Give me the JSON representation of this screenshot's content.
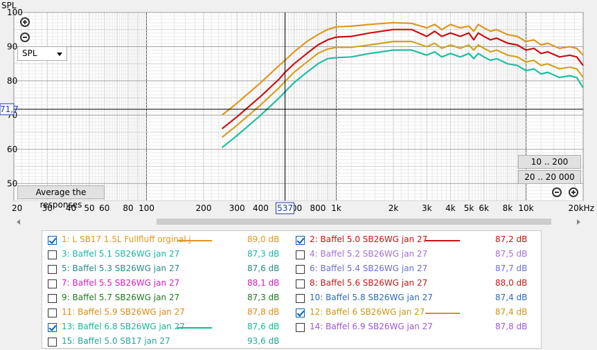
{
  "chart_data": {
    "type": "line",
    "title": "",
    "xlabel": "",
    "ylabel": "SPL",
    "xscale": "log",
    "xlim": [
      20,
      20000
    ],
    "ylim": [
      45,
      100
    ],
    "yticks": [
      100,
      90,
      80,
      70,
      60,
      50
    ],
    "xticks": [
      {
        "v": 20,
        "t": "20"
      },
      {
        "v": 30,
        "t": "30"
      },
      {
        "v": 40,
        "t": "40"
      },
      {
        "v": 50,
        "t": "50"
      },
      {
        "v": 60,
        "t": "60"
      },
      {
        "v": 80,
        "t": "80"
      },
      {
        "v": 100,
        "t": "100"
      },
      {
        "v": 200,
        "t": "200"
      },
      {
        "v": 300,
        "t": "300"
      },
      {
        "v": 400,
        "t": "400"
      },
      {
        "v": 600,
        "t": "600"
      },
      {
        "v": 800,
        "t": "800"
      },
      {
        "v": 1000,
        "t": "1k"
      },
      {
        "v": 2000,
        "t": "2k"
      },
      {
        "v": 3000,
        "t": "3k"
      },
      {
        "v": 4000,
        "t": "4k"
      },
      {
        "v": 5000,
        "t": "5k"
      },
      {
        "v": 6000,
        "t": "6k"
      },
      {
        "v": 8000,
        "t": "8k"
      },
      {
        "v": 10000,
        "t": "10k"
      },
      {
        "v": 20000,
        "t": "20kHz"
      }
    ],
    "cursor": {
      "x": 537,
      "y": 71.7,
      "x_label": "537",
      "y_label": "71,7"
    },
    "series": [
      {
        "name": "1: L SB17 1.5L Fullfluff orginal j",
        "color": "#e0951e",
        "points": [
          [
            250,
            70
          ],
          [
            300,
            73.5
          ],
          [
            400,
            79.5
          ],
          [
            500,
            84.5
          ],
          [
            537,
            86
          ],
          [
            600,
            88.5
          ],
          [
            700,
            91.5
          ],
          [
            800,
            93.5
          ],
          [
            900,
            95
          ],
          [
            1000,
            95.8
          ],
          [
            1200,
            96
          ],
          [
            1500,
            96.5
          ],
          [
            2000,
            97
          ],
          [
            2500,
            96.8
          ],
          [
            3000,
            95.5
          ],
          [
            3300,
            96.5
          ],
          [
            3600,
            95
          ],
          [
            4000,
            96.5
          ],
          [
            4500,
            95.5
          ],
          [
            5000,
            96
          ],
          [
            5300,
            94.5
          ],
          [
            5600,
            96.5
          ],
          [
            6000,
            95.5
          ],
          [
            6500,
            94.5
          ],
          [
            7000,
            95
          ],
          [
            8000,
            93.5
          ],
          [
            9000,
            93
          ],
          [
            10000,
            91.5
          ],
          [
            11000,
            92
          ],
          [
            12000,
            90.5
          ],
          [
            13000,
            91
          ],
          [
            15000,
            89.5
          ],
          [
            17000,
            90
          ],
          [
            18500,
            89.5
          ],
          [
            20000,
            87.5
          ]
        ]
      },
      {
        "name": "2: Baffel 5.0 SB26WG jan 27",
        "color": "#cc1010",
        "points": [
          [
            250,
            66
          ],
          [
            300,
            69.5
          ],
          [
            400,
            75.5
          ],
          [
            500,
            80.5
          ],
          [
            537,
            82.5
          ],
          [
            600,
            85
          ],
          [
            700,
            88
          ],
          [
            800,
            90.5
          ],
          [
            900,
            92
          ],
          [
            1000,
            92.8
          ],
          [
            1200,
            93
          ],
          [
            1500,
            94
          ],
          [
            2000,
            95
          ],
          [
            2500,
            95
          ],
          [
            3000,
            93
          ],
          [
            3300,
            94.5
          ],
          [
            3600,
            93
          ],
          [
            4000,
            94
          ],
          [
            4500,
            93
          ],
          [
            5000,
            94
          ],
          [
            5300,
            92
          ],
          [
            5600,
            94
          ],
          [
            6000,
            93
          ],
          [
            6500,
            92
          ],
          [
            7000,
            92.5
          ],
          [
            8000,
            91
          ],
          [
            9000,
            90.5
          ],
          [
            10000,
            89
          ],
          [
            11000,
            89.5
          ],
          [
            12000,
            88
          ],
          [
            13000,
            88.5
          ],
          [
            15000,
            87
          ],
          [
            17000,
            87.5
          ],
          [
            18500,
            87
          ],
          [
            20000,
            84.5
          ]
        ]
      },
      {
        "name": "12: Baffel 6 SB26WG jan 27",
        "color": "#d4a020",
        "points": [
          [
            250,
            63.5
          ],
          [
            300,
            67
          ],
          [
            400,
            73
          ],
          [
            500,
            78
          ],
          [
            537,
            79.8
          ],
          [
            600,
            82.5
          ],
          [
            700,
            85.5
          ],
          [
            800,
            88
          ],
          [
            900,
            89.3
          ],
          [
            1000,
            89.8
          ],
          [
            1200,
            89.8
          ],
          [
            1500,
            90.5
          ],
          [
            2000,
            91.5
          ],
          [
            2500,
            91.5
          ],
          [
            3000,
            90
          ],
          [
            3300,
            91
          ],
          [
            3600,
            89.5
          ],
          [
            4000,
            90.5
          ],
          [
            4500,
            89.5
          ],
          [
            5000,
            90.5
          ],
          [
            5300,
            89
          ],
          [
            5600,
            90.5
          ],
          [
            6000,
            89.5
          ],
          [
            6500,
            88.5
          ],
          [
            7000,
            89
          ],
          [
            8000,
            87.5
          ],
          [
            9000,
            87
          ],
          [
            10000,
            85.5
          ],
          [
            11000,
            86
          ],
          [
            12000,
            84.5
          ],
          [
            13000,
            85
          ],
          [
            15000,
            83.5
          ],
          [
            17000,
            84
          ],
          [
            18500,
            83.5
          ],
          [
            20000,
            81
          ]
        ]
      },
      {
        "name": "13: Baffel 6.8 SB26WG jan 27",
        "color": "#1bc0a0",
        "points": [
          [
            250,
            60.5
          ],
          [
            300,
            64
          ],
          [
            400,
            70
          ],
          [
            500,
            75
          ],
          [
            537,
            76.8
          ],
          [
            600,
            79.5
          ],
          [
            700,
            82.5
          ],
          [
            800,
            85
          ],
          [
            900,
            86.5
          ],
          [
            1000,
            86.8
          ],
          [
            1200,
            87
          ],
          [
            1500,
            88
          ],
          [
            2000,
            89
          ],
          [
            2500,
            89
          ],
          [
            3000,
            87.5
          ],
          [
            3300,
            88.5
          ],
          [
            3600,
            87
          ],
          [
            4000,
            88
          ],
          [
            4500,
            87
          ],
          [
            5000,
            88
          ],
          [
            5300,
            86.5
          ],
          [
            5600,
            88
          ],
          [
            6000,
            87
          ],
          [
            6500,
            86
          ],
          [
            7000,
            86.5
          ],
          [
            8000,
            85
          ],
          [
            9000,
            84.5
          ],
          [
            10000,
            83
          ],
          [
            11000,
            83.5
          ],
          [
            12000,
            82
          ],
          [
            13000,
            82.5
          ],
          [
            15000,
            81
          ],
          [
            17000,
            81.5
          ],
          [
            18500,
            81
          ],
          [
            20000,
            78
          ]
        ]
      }
    ]
  },
  "controls": {
    "spl_select": "SPL",
    "average_button": "Average the responses",
    "range_button_1": "10 .. 200",
    "range_button_2": "20 .. 20 000"
  },
  "legend": {
    "items": [
      {
        "label": "1: L SB17 1.5L Fullfluff orginal j",
        "value": "89,0 dB",
        "color": "#e0951e",
        "checked": true
      },
      {
        "label": "2: Baffel 5.0 SB26WG jan 27",
        "value": "87,2 dB",
        "color": "#cc1010",
        "checked": true
      },
      {
        "label": "3: Baffel 5.1 SB26WG jan 27",
        "value": "87,3 dB",
        "color": "#17b6a4",
        "checked": false
      },
      {
        "label": "4: Baffel 5.2 SB26WG jan 27",
        "value": "87,5 dB",
        "color": "#a070d8",
        "checked": false
      },
      {
        "label": "5: Baffel 5.3 SB26WG jan 27",
        "value": "87,6 dB",
        "color": "#2a8a8a",
        "checked": false
      },
      {
        "label": "6: Baffel 5.4 SB26WG jan 27",
        "value": "87,7 dB",
        "color": "#6a6fd0",
        "checked": false
      },
      {
        "label": "7: Baffel 5.5 SB26WG jan 27",
        "value": "88,1 dB",
        "color": "#d020c0",
        "checked": false
      },
      {
        "label": "8: Baffel 5.6 SB26WG jan 27",
        "value": "88,0 dB",
        "color": "#c01818",
        "checked": false
      },
      {
        "label": "9: Baffel 5.7 SB26WG jan 27",
        "value": "87,3 dB",
        "color": "#1e7a1e",
        "checked": false
      },
      {
        "label": "10: Baffel 5.8 SB26WG jan 27",
        "value": "87,4 dB",
        "color": "#2a6ac0",
        "checked": false
      },
      {
        "label": "11: Baffel 5.9 SB26WG jan 27",
        "value": "87,8 dB",
        "color": "#e08a10",
        "checked": false
      },
      {
        "label": "12: Baffel 6 SB26WG jan 27",
        "value": "87,4 dB",
        "color": "#c89810",
        "checked": true
      },
      {
        "label": "13: Baffel 6.8 SB26WG jan 27",
        "value": "87,6 dB",
        "color": "#12b896",
        "checked": true
      },
      {
        "label": "14: Baffel 6.9 SB26WG jan 27",
        "value": "87,8 dB",
        "color": "#9a5ad0",
        "checked": false
      },
      {
        "label": "15: Baffel 5.0 SB17 jan 27",
        "value": "93,6 dB",
        "color": "#20a898",
        "checked": false
      }
    ]
  }
}
